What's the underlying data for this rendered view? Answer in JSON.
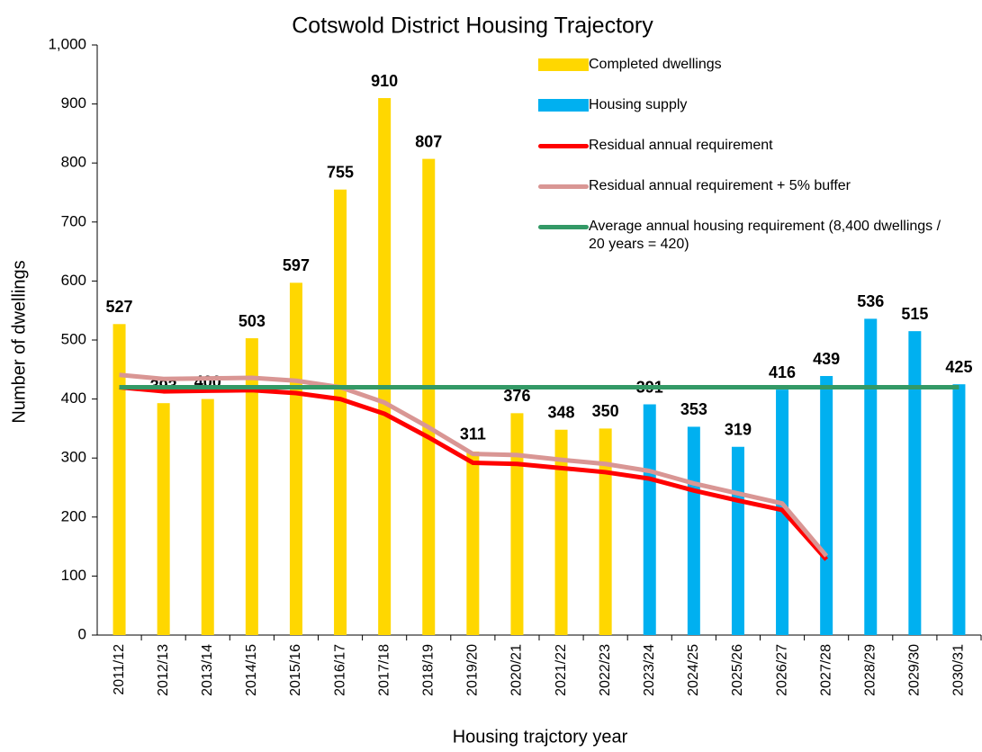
{
  "chart_data": {
    "type": "bar",
    "title": "Cotswold District Housing Trajectory",
    "x_label": "Housing trajctory year",
    "y_label": "Number of dwellings",
    "categories": [
      "2011/12",
      "2012/13",
      "2013/14",
      "2014/15",
      "2015/16",
      "2016/17",
      "2017/18",
      "2018/19",
      "2019/20",
      "2020/21",
      "2021/22",
      "2022/23",
      "2023/24",
      "2024/25",
      "2025/26",
      "2026/27",
      "2027/28",
      "2028/29",
      "2029/30",
      "2030/31"
    ],
    "series": [
      {
        "name": "Completed dwellings",
        "type": "bar",
        "color": "#ffd700",
        "show_labels": true,
        "values": [
          527,
          393,
          400,
          503,
          597,
          755,
          910,
          807,
          311,
          376,
          348,
          350,
          null,
          null,
          null,
          null,
          null,
          null,
          null,
          null
        ]
      },
      {
        "name": "Housing supply",
        "type": "bar",
        "color": "#00b0f0",
        "show_labels": true,
        "values": [
          null,
          null,
          null,
          null,
          null,
          null,
          null,
          null,
          null,
          null,
          null,
          null,
          391,
          353,
          319,
          416,
          439,
          536,
          515,
          425
        ]
      },
      {
        "name": "Residual annual requirement",
        "type": "line",
        "color": "#ff0000",
        "values": [
          420,
          413,
          414,
          415,
          410,
          400,
          375,
          335,
          292,
          290,
          283,
          276,
          265,
          245,
          228,
          212,
          128,
          null,
          null,
          null
        ]
      },
      {
        "name": "Residual annual requirement + 5% buffer",
        "type": "line",
        "color": "#d99694",
        "values": [
          441,
          434,
          435,
          436,
          431,
          420,
          394,
          352,
          307,
          305,
          297,
          290,
          278,
          257,
          240,
          223,
          134,
          null,
          null,
          null
        ]
      },
      {
        "name": "Average annual housing requirement (8,400 dwellings / 20 years = 420)",
        "type": "line",
        "color": "#339966",
        "values": [
          420,
          420,
          420,
          420,
          420,
          420,
          420,
          420,
          420,
          420,
          420,
          420,
          420,
          420,
          420,
          420,
          420,
          420,
          420,
          420
        ]
      }
    ],
    "ylim": [
      0,
      1000
    ],
    "yticks": [
      0,
      100,
      200,
      300,
      400,
      500,
      600,
      700,
      800,
      900,
      {
        "value": 1000,
        "label": "1,000"
      }
    ],
    "legend": "top-right"
  }
}
